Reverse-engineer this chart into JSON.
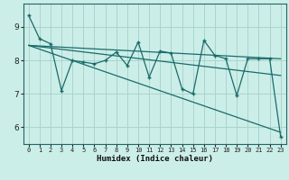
{
  "xlabel": "Humidex (Indice chaleur)",
  "bg_color": "#cceee8",
  "grid_color": "#aad4ce",
  "line_color": "#1a6b6b",
  "xlim": [
    -0.5,
    23.5
  ],
  "ylim": [
    5.5,
    9.7
  ],
  "yticks": [
    6,
    7,
    8,
    9
  ],
  "xticks": [
    0,
    1,
    2,
    3,
    4,
    5,
    6,
    7,
    8,
    9,
    10,
    11,
    12,
    13,
    14,
    15,
    16,
    17,
    18,
    19,
    20,
    21,
    22,
    23
  ],
  "line1_x": [
    0,
    1,
    2,
    3,
    4,
    5,
    6,
    7,
    8,
    9,
    10,
    11,
    12,
    13,
    14,
    15,
    16,
    17,
    18,
    19,
    20,
    21,
    22,
    23
  ],
  "line1_y": [
    9.35,
    8.65,
    8.5,
    7.1,
    8.0,
    7.95,
    7.9,
    8.0,
    8.25,
    7.85,
    8.55,
    7.5,
    8.28,
    8.22,
    7.15,
    7.0,
    8.6,
    8.15,
    8.05,
    6.95,
    8.05,
    8.05,
    8.05,
    5.72
  ],
  "trend1_x": [
    0,
    23
  ],
  "trend1_y": [
    8.45,
    8.05
  ],
  "trend2_x": [
    0,
    23
  ],
  "trend2_y": [
    8.45,
    7.55
  ],
  "trend3_x": [
    0,
    23
  ],
  "trend3_y": [
    8.45,
    5.85
  ]
}
